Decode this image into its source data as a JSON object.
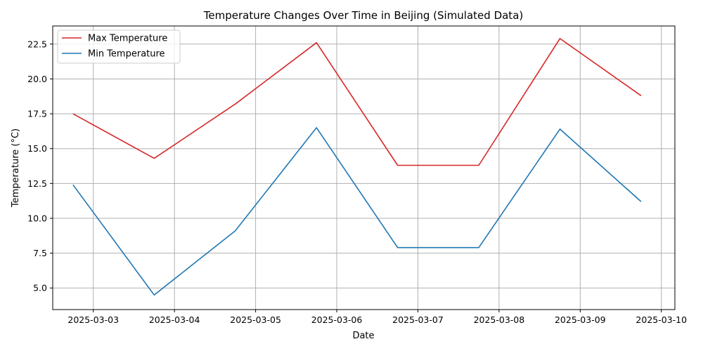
{
  "chart_data": {
    "type": "line",
    "title": "Temperature Changes Over Time in Beijing (Simulated Data)",
    "xlabel": "Date",
    "ylabel": "Temperature (°C)",
    "x": [
      "2025-03-02T18:00",
      "2025-03-03T18:00",
      "2025-03-04T18:00",
      "2025-03-05T18:00",
      "2025-03-06T18:00",
      "2025-03-07T18:00",
      "2025-03-08T18:00",
      "2025-03-09T18:00"
    ],
    "xlim": [
      "2025-03-02T12:00",
      "2025-03-10T04:00"
    ],
    "xticks": [
      "2025-03-03",
      "2025-03-04",
      "2025-03-05",
      "2025-03-06",
      "2025-03-07",
      "2025-03-08",
      "2025-03-09",
      "2025-03-10"
    ],
    "ylim": [
      3.45,
      23.8
    ],
    "yticks": [
      "5.0",
      "7.5",
      "10.0",
      "12.5",
      "15.0",
      "17.5",
      "20.0",
      "22.5"
    ],
    "grid": true,
    "legend_position": "top-left",
    "series": [
      {
        "name": "Max Temperature",
        "color": "#d62728",
        "values": [
          17.5,
          14.3,
          18.2,
          22.6,
          13.8,
          13.8,
          22.9,
          18.8
        ]
      },
      {
        "name": "Min Temperature",
        "color": "#1f77b4",
        "values": [
          12.4,
          4.5,
          9.1,
          16.5,
          7.9,
          7.9,
          16.4,
          11.2
        ]
      }
    ]
  }
}
